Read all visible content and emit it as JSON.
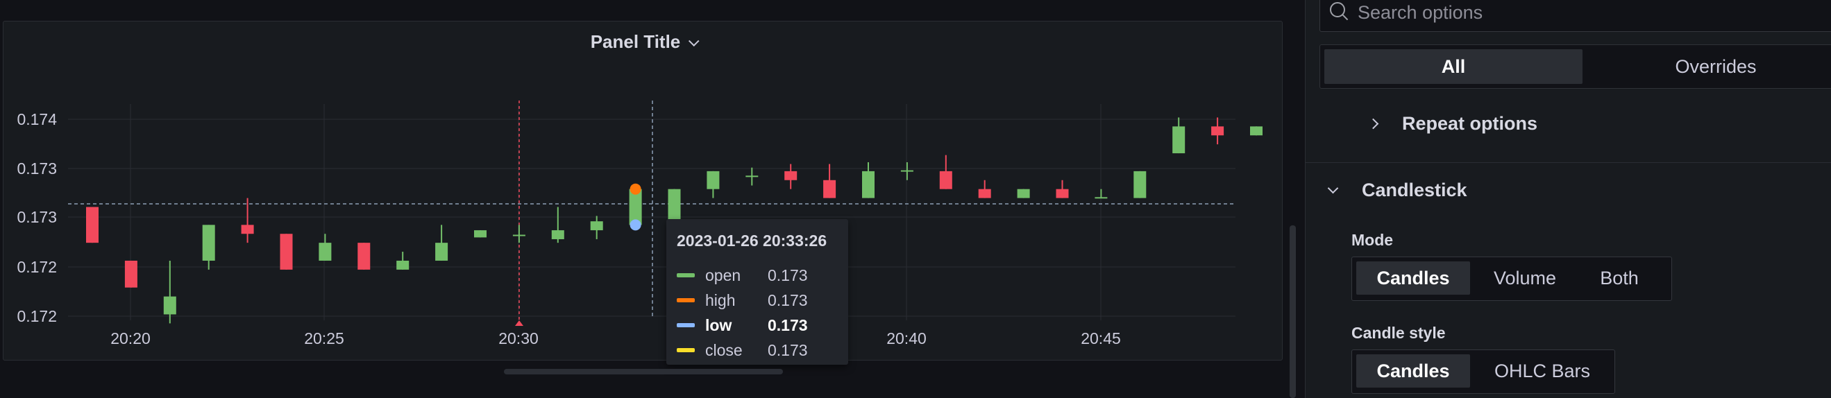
{
  "panel": {
    "title": "Panel Title"
  },
  "chart_data": {
    "type": "candlestick",
    "y_tick_labels": [
      "0.174",
      "0.173",
      "0.173",
      "0.172",
      "0.172"
    ],
    "x_tick_labels": [
      "20:20",
      "20:25",
      "20:30",
      "20:40",
      "20:45"
    ],
    "colors": {
      "up": "#73bf69",
      "down": "#f2495c",
      "grid": "#2a2d33"
    },
    "candles": [
      {
        "o": 0.17322,
        "c": 0.17282,
        "h": 0.17322,
        "l": 0.17282
      },
      {
        "o": 0.17262,
        "c": 0.17232,
        "h": 0.17262,
        "l": 0.17232
      },
      {
        "o": 0.17202,
        "c": 0.17222,
        "h": 0.17262,
        "l": 0.17192
      },
      {
        "o": 0.17262,
        "c": 0.17302,
        "h": 0.17302,
        "l": 0.17252
      },
      {
        "o": 0.17302,
        "c": 0.17292,
        "h": 0.17332,
        "l": 0.17282
      },
      {
        "o": 0.17292,
        "c": 0.17252,
        "h": 0.17292,
        "l": 0.17252
      },
      {
        "o": 0.17262,
        "c": 0.17282,
        "h": 0.17292,
        "l": 0.17262
      },
      {
        "o": 0.17282,
        "c": 0.17252,
        "h": 0.17282,
        "l": 0.17252
      },
      {
        "o": 0.17252,
        "c": 0.17262,
        "h": 0.17272,
        "l": 0.17252
      },
      {
        "o": 0.17262,
        "c": 0.17282,
        "h": 0.17302,
        "l": 0.17262
      },
      {
        "o": 0.17288,
        "c": 0.17296,
        "h": 0.17296,
        "l": 0.17288
      },
      {
        "o": 0.1729,
        "c": 0.17291,
        "h": 0.17302,
        "l": 0.17282
      },
      {
        "o": 0.17286,
        "c": 0.17296,
        "h": 0.17322,
        "l": 0.17282
      },
      {
        "o": 0.17296,
        "c": 0.17306,
        "h": 0.17312,
        "l": 0.17286
      },
      {
        "o": 0.17302,
        "c": 0.17342,
        "h": 0.17342,
        "l": 0.17302
      },
      {
        "o": 0.17342,
        "c": 0.17362,
        "h": 0.17362,
        "l": 0.17332
      },
      {
        "o": 0.17356,
        "c": 0.17357,
        "h": 0.17366,
        "l": 0.17346
      },
      {
        "o": 0.17362,
        "c": 0.17352,
        "h": 0.1737,
        "l": 0.17342
      },
      {
        "o": 0.17352,
        "c": 0.17332,
        "h": 0.1737,
        "l": 0.17332
      },
      {
        "o": 0.17332,
        "c": 0.17362,
        "h": 0.17372,
        "l": 0.17332
      },
      {
        "o": 0.17362,
        "c": 0.17363,
        "h": 0.17372,
        "l": 0.17352
      },
      {
        "o": 0.17362,
        "c": 0.17342,
        "h": 0.1738,
        "l": 0.17342
      },
      {
        "o": 0.17342,
        "c": 0.17332,
        "h": 0.17352,
        "l": 0.17332
      },
      {
        "o": 0.17332,
        "c": 0.17342,
        "h": 0.17342,
        "l": 0.17332
      },
      {
        "o": 0.17342,
        "c": 0.17332,
        "h": 0.17352,
        "l": 0.17332
      },
      {
        "o": 0.17332,
        "c": 0.17333,
        "h": 0.17342,
        "l": 0.17332
      },
      {
        "o": 0.17332,
        "c": 0.17362,
        "h": 0.17362,
        "l": 0.17332
      },
      {
        "o": 0.17382,
        "c": 0.17412,
        "h": 0.17422,
        "l": 0.17382
      },
      {
        "o": 0.17412,
        "c": 0.17402,
        "h": 0.17422,
        "l": 0.17392
      },
      {
        "o": 0.17402,
        "c": 0.17412,
        "h": 0.17412,
        "l": 0.17402
      }
    ],
    "hover_candle": {
      "o": 0.17302,
      "c": 0.17342,
      "h": 0.17342,
      "l": 0.17302
    }
  },
  "tooltip": {
    "time": "2023-01-26 20:33:26",
    "rows": [
      {
        "label": "open",
        "value": "0.173",
        "color": "#73bf69"
      },
      {
        "label": "high",
        "value": "0.173",
        "color": "#ff780a"
      },
      {
        "label": "low",
        "value": "0.173",
        "color": "#8ab8ff"
      },
      {
        "label": "close",
        "value": "0.173",
        "color": "#fade2a"
      }
    ]
  },
  "options": {
    "search_placeholder": "Search options",
    "tabs": [
      "All",
      "Overrides"
    ],
    "repeat_options": "Repeat options",
    "candlestick": "Candlestick",
    "mode_label": "Mode",
    "mode_options": [
      "Candles",
      "Volume",
      "Both"
    ],
    "candle_style_label": "Candle style",
    "candle_style_options": [
      "Candles",
      "OHLC Bars"
    ]
  }
}
